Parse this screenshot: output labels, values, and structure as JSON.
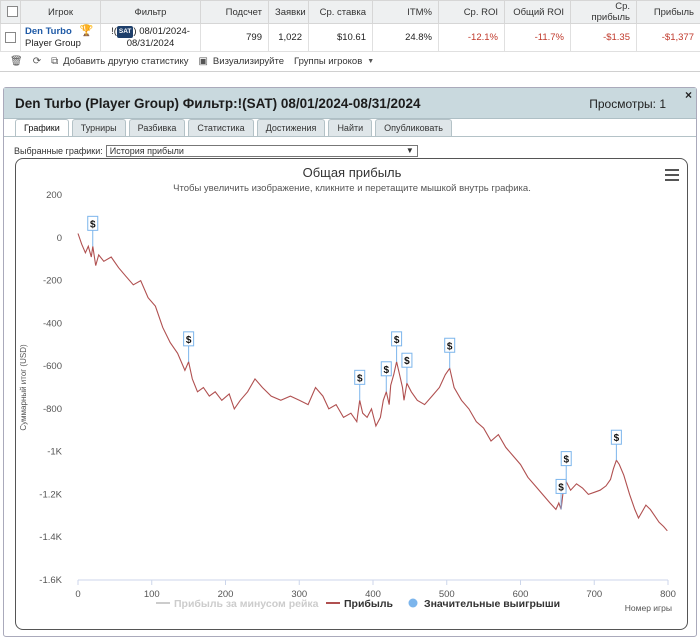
{
  "table": {
    "headers": [
      "Игрок",
      "Фильтр",
      "Подсчет",
      "Заявки",
      "Ср. ставка",
      "ITM%",
      "Ср. ROI",
      "Общий ROI",
      "Ср. прибыль",
      "Прибыль"
    ],
    "row": {
      "player": "Den Turbo",
      "group": "Player Group",
      "filter_prefix": "!(",
      "filter_badge": "SAT",
      "filter_suffix": ") 08/01/2024-",
      "filter_date2": "08/31/2024",
      "count": "799",
      "entries": "1,022",
      "avg_stake": "$10.61",
      "itm": "24.8%",
      "avg_roi": "-12.1%",
      "total_roi": "-11.7%",
      "avg_profit": "-$1.35",
      "profit": "-$1,377"
    }
  },
  "toolbar": {
    "add_stats": "Добавить другую статистику",
    "visualize": "Визуализируйте",
    "player_groups": "Группы игроков"
  },
  "panel": {
    "title": "Den Turbo (Player Group) Фильтр:!(SAT) 08/01/2024-08/31/2024",
    "views": "Просмотры: 1",
    "close": "×",
    "tabs": [
      "Графики",
      "Турниры",
      "Разбивка",
      "Статистика",
      "Достижения",
      "Найти",
      "Опубликовать"
    ],
    "selector_label": "Выбранные графики:",
    "selector_value": "История прибыли"
  },
  "chart_data": {
    "type": "line",
    "title": "Общая прибыль",
    "subtitle": "Чтобы увеличить изображение, кликните и перетащите мышкой внутрь графика.",
    "xlabel": "Номер игры",
    "ylabel": "Суммарный итог (USD)",
    "xlim": [
      0,
      800
    ],
    "ylim": [
      -1600,
      200
    ],
    "xticks": [
      0,
      100,
      200,
      300,
      400,
      500,
      600,
      700,
      800
    ],
    "xtick_labels": [
      "0",
      "100",
      "200",
      "300",
      "400",
      "500",
      "600",
      "700",
      "800"
    ],
    "yticks": [
      200,
      0,
      -200,
      -400,
      -600,
      -800,
      -1000,
      -1200,
      -1400,
      -1600
    ],
    "ytick_labels": [
      "200",
      "0",
      "-200",
      "-400",
      "-600",
      "-800",
      "-1K",
      "-1.2K",
      "-1.4K",
      "-1.6K"
    ],
    "legend": [
      {
        "label": "Прибыль за минусом рейка",
        "color": "#cccccc",
        "marker": "line"
      },
      {
        "label": "Прибыль",
        "color": "#b05050",
        "marker": "line"
      },
      {
        "label": "Значительные выигрыши",
        "color": "#7cb5ec",
        "marker": "circle"
      }
    ],
    "series": [
      {
        "name": "Прибыль",
        "color": "#b05050",
        "points": [
          [
            0,
            20
          ],
          [
            5,
            -30
          ],
          [
            10,
            -70
          ],
          [
            14,
            -40
          ],
          [
            18,
            -90
          ],
          [
            20,
            -40
          ],
          [
            24,
            -130
          ],
          [
            28,
            -80
          ],
          [
            35,
            -110
          ],
          [
            45,
            -90
          ],
          [
            55,
            -140
          ],
          [
            65,
            -180
          ],
          [
            75,
            -220
          ],
          [
            85,
            -200
          ],
          [
            95,
            -280
          ],
          [
            105,
            -320
          ],
          [
            115,
            -420
          ],
          [
            125,
            -490
          ],
          [
            135,
            -540
          ],
          [
            145,
            -620
          ],
          [
            150,
            -580
          ],
          [
            155,
            -660
          ],
          [
            162,
            -720
          ],
          [
            170,
            -700
          ],
          [
            178,
            -740
          ],
          [
            186,
            -720
          ],
          [
            195,
            -760
          ],
          [
            205,
            -730
          ],
          [
            212,
            -800
          ],
          [
            220,
            -760
          ],
          [
            230,
            -720
          ],
          [
            240,
            -660
          ],
          [
            250,
            -700
          ],
          [
            262,
            -740
          ],
          [
            275,
            -760
          ],
          [
            288,
            -740
          ],
          [
            300,
            -760
          ],
          [
            312,
            -780
          ],
          [
            322,
            -700
          ],
          [
            332,
            -740
          ],
          [
            340,
            -800
          ],
          [
            350,
            -780
          ],
          [
            360,
            -840
          ],
          [
            370,
            -820
          ],
          [
            378,
            -860
          ],
          [
            382,
            -760
          ],
          [
            386,
            -820
          ],
          [
            392,
            -840
          ],
          [
            398,
            -800
          ],
          [
            404,
            -880
          ],
          [
            410,
            -840
          ],
          [
            414,
            -760
          ],
          [
            418,
            -720
          ],
          [
            422,
            -780
          ],
          [
            424,
            -690
          ],
          [
            428,
            -640
          ],
          [
            432,
            -580
          ],
          [
            436,
            -640
          ],
          [
            440,
            -700
          ],
          [
            442,
            -760
          ],
          [
            446,
            -680
          ],
          [
            452,
            -720
          ],
          [
            460,
            -760
          ],
          [
            470,
            -780
          ],
          [
            480,
            -740
          ],
          [
            490,
            -700
          ],
          [
            498,
            -640
          ],
          [
            504,
            -610
          ],
          [
            510,
            -700
          ],
          [
            520,
            -760
          ],
          [
            530,
            -800
          ],
          [
            540,
            -860
          ],
          [
            550,
            -890
          ],
          [
            560,
            -950
          ],
          [
            570,
            -920
          ],
          [
            580,
            -980
          ],
          [
            590,
            -1020
          ],
          [
            600,
            -1060
          ],
          [
            610,
            -1120
          ],
          [
            620,
            -1160
          ],
          [
            630,
            -1200
          ],
          [
            640,
            -1240
          ],
          [
            648,
            -1270
          ],
          [
            652,
            -1240
          ],
          [
            655,
            -1270
          ],
          [
            658,
            -1180
          ],
          [
            662,
            -1140
          ],
          [
            668,
            -1180
          ],
          [
            676,
            -1150
          ],
          [
            684,
            -1170
          ],
          [
            692,
            -1200
          ],
          [
            700,
            -1190
          ],
          [
            708,
            -1180
          ],
          [
            716,
            -1160
          ],
          [
            722,
            -1130
          ],
          [
            726,
            -1080
          ],
          [
            730,
            -1040
          ],
          [
            734,
            -1060
          ],
          [
            740,
            -1110
          ],
          [
            748,
            -1200
          ],
          [
            755,
            -1270
          ],
          [
            760,
            -1310
          ],
          [
            765,
            -1280
          ],
          [
            770,
            -1250
          ],
          [
            776,
            -1270
          ],
          [
            782,
            -1300
          ],
          [
            788,
            -1330
          ],
          [
            794,
            -1350
          ],
          [
            799,
            -1370
          ]
        ]
      }
    ],
    "big_wins": [
      {
        "x": 20,
        "y": -40,
        "label": "$"
      },
      {
        "x": 150,
        "y": -580,
        "label": "$"
      },
      {
        "x": 382,
        "y": -760,
        "label": "$"
      },
      {
        "x": 418,
        "y": -720,
        "label": "$"
      },
      {
        "x": 432,
        "y": -580,
        "label": "$"
      },
      {
        "x": 446,
        "y": -680,
        "label": "$"
      },
      {
        "x": 504,
        "y": -610,
        "label": "$"
      },
      {
        "x": 655,
        "y": -1270,
        "label": "$"
      },
      {
        "x": 662,
        "y": -1140,
        "label": "$"
      },
      {
        "x": 730,
        "y": -1040,
        "label": "$"
      }
    ]
  }
}
